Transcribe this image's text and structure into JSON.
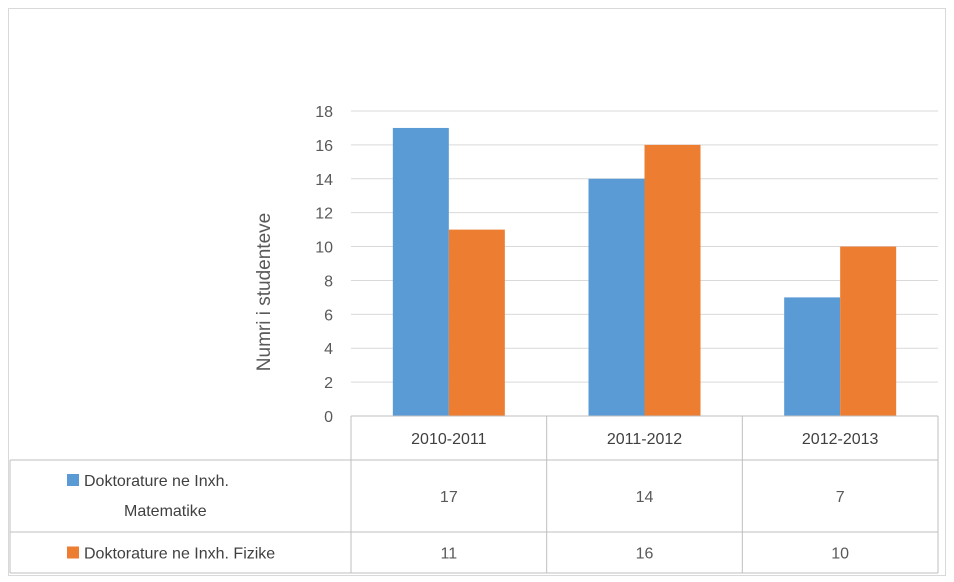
{
  "chart_data": {
    "type": "bar",
    "categories": [
      "2010-2011",
      "2011-2012",
      "2012-2013"
    ],
    "series": [
      {
        "name": "Doktorature ne Inxh. Matematike",
        "legend_lines": [
          "Doktorature ne Inxh.",
          "Matematike"
        ],
        "values": [
          17,
          14,
          7
        ],
        "color": "#5b9bd5"
      },
      {
        "name": "Doktorature ne Inxh. Fizike",
        "legend_lines": [
          "Doktorature ne Inxh. Fizike"
        ],
        "values": [
          11,
          16,
          10
        ],
        "color": "#ed7d31"
      }
    ],
    "ylabel": "Numri i studenteve",
    "ylim": [
      0,
      18
    ],
    "yticks": [
      0,
      2,
      4,
      6,
      8,
      10,
      12,
      14,
      16,
      18
    ],
    "grid": true,
    "data_table": true
  }
}
